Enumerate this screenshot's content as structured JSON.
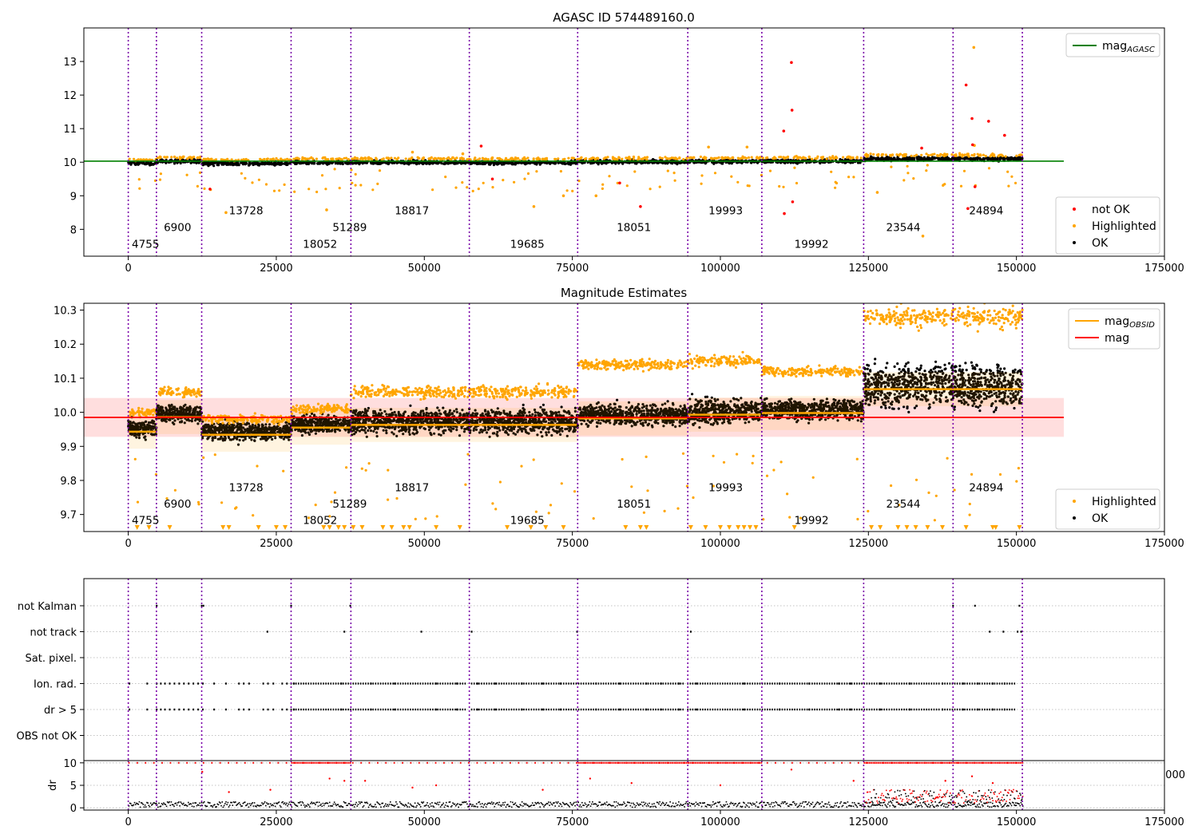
{
  "colors": {
    "ok": "#000000",
    "highlighted": "#ffa500",
    "not_ok": "#ff0000",
    "agasc_line": "#008000",
    "mag_line": "#ff0000",
    "mag_band": "#ffd6d6",
    "obs_boundary": "#7a00a8"
  },
  "chart_data": [
    {
      "type": "scatter",
      "title": "AGASC ID 574489160.0",
      "xlabel": "",
      "ylabel": "",
      "xlim": [
        -7500,
        175000
      ],
      "ylim": [
        7.2,
        14.0
      ],
      "xticks": [
        0,
        25000,
        50000,
        75000,
        100000,
        125000,
        150000,
        175000
      ],
      "xtick_labels": [
        "0",
        "25000",
        "50000",
        "75000",
        "100000",
        "125000",
        "150000",
        "175000"
      ],
      "yticks": [
        8,
        9,
        10,
        11,
        12,
        13
      ],
      "ytick_labels": [
        "8",
        "9",
        "10",
        "11",
        "12",
        "13"
      ],
      "mag_agasc": 10.03,
      "legend_position": "top-right / lower-right",
      "legend_top": [
        {
          "label": "mag",
          "sub": "AGASC",
          "color": "#008000",
          "kind": "line"
        }
      ],
      "legend_bottom": [
        {
          "label": "not OK",
          "color": "#ff0000",
          "kind": "dot"
        },
        {
          "label": "Highlighted",
          "color": "#ffa500",
          "kind": "dot"
        },
        {
          "label": "OK",
          "color": "#000000",
          "kind": "dot"
        }
      ],
      "obsid_boundaries": [
        0,
        4755,
        12400,
        27500,
        37600,
        57600,
        75900,
        94500,
        107000,
        124200,
        139300,
        151000
      ],
      "obsid_labels": [
        {
          "text": "4755",
          "x": 600,
          "y": 7.45
        },
        {
          "text": "6900",
          "x": 6000,
          "y": 7.95
        },
        {
          "text": "13728",
          "x": 17000,
          "y": 8.45
        },
        {
          "text": "18052",
          "x": 29500,
          "y": 7.45
        },
        {
          "text": "51289",
          "x": 34500,
          "y": 7.95
        },
        {
          "text": "18817",
          "x": 45000,
          "y": 8.45
        },
        {
          "text": "19685",
          "x": 64500,
          "y": 7.45
        },
        {
          "text": "18051",
          "x": 82500,
          "y": 7.95
        },
        {
          "text": "19993",
          "x": 98000,
          "y": 8.45
        },
        {
          "text": "19992",
          "x": 112500,
          "y": 7.45
        },
        {
          "text": "23544",
          "x": 128000,
          "y": 7.95
        },
        {
          "text": "24894",
          "x": 142000,
          "y": 8.45
        }
      ],
      "segments": [
        {
          "x0": 0,
          "x1": 4755,
          "ok_center": 9.94,
          "ok_spread": 0.05,
          "hl_upper": 10.0
        },
        {
          "x0": 4755,
          "x1": 12400,
          "ok_center": 10.0,
          "ok_spread": 0.05,
          "hl_upper": 10.06
        },
        {
          "x0": 12400,
          "x1": 27500,
          "ok_center": 9.93,
          "ok_spread": 0.05,
          "hl_upper": 9.98
        },
        {
          "x0": 27500,
          "x1": 37600,
          "ok_center": 9.96,
          "ok_spread": 0.05,
          "hl_upper": 10.01
        },
        {
          "x0": 37600,
          "x1": 57600,
          "ok_center": 9.97,
          "ok_spread": 0.07,
          "hl_upper": 10.06
        },
        {
          "x0": 57600,
          "x1": 75900,
          "ok_center": 9.96,
          "ok_spread": 0.07,
          "hl_upper": 10.06
        },
        {
          "x0": 75900,
          "x1": 94500,
          "ok_center": 9.98,
          "ok_spread": 0.06,
          "hl_upper": 10.14
        },
        {
          "x0": 94500,
          "x1": 107000,
          "ok_center": 9.99,
          "ok_spread": 0.07,
          "hl_upper": 10.15
        },
        {
          "x0": 107000,
          "x1": 124200,
          "ok_center": 10.0,
          "ok_spread": 0.06,
          "hl_upper": 10.12
        },
        {
          "x0": 124200,
          "x1": 139300,
          "ok_center": 10.07,
          "ok_spread": 0.12,
          "hl_upper": 10.28
        },
        {
          "x0": 139300,
          "x1": 151000,
          "ok_center": 10.07,
          "ok_spread": 0.12,
          "hl_upper": 10.28
        }
      ],
      "not_ok_points": [
        {
          "x": 13800,
          "y": 9.2
        },
        {
          "x": 59600,
          "y": 10.48
        },
        {
          "x": 61500,
          "y": 9.5
        },
        {
          "x": 83000,
          "y": 9.38
        },
        {
          "x": 86500,
          "y": 8.68
        },
        {
          "x": 110700,
          "y": 10.93
        },
        {
          "x": 110800,
          "y": 8.47
        },
        {
          "x": 112000,
          "y": 12.97
        },
        {
          "x": 112100,
          "y": 11.55
        },
        {
          "x": 112200,
          "y": 8.82
        },
        {
          "x": 134000,
          "y": 10.42
        },
        {
          "x": 141500,
          "y": 12.3
        },
        {
          "x": 141800,
          "y": 8.62
        },
        {
          "x": 142500,
          "y": 11.3
        },
        {
          "x": 142600,
          "y": 10.52
        },
        {
          "x": 143000,
          "y": 9.27
        },
        {
          "x": 145300,
          "y": 11.22
        },
        {
          "x": 148000,
          "y": 10.8
        }
      ],
      "highlighted_outliers": [
        {
          "x": 16500,
          "y": 8.5
        },
        {
          "x": 33500,
          "y": 8.58
        },
        {
          "x": 48000,
          "y": 10.3
        },
        {
          "x": 56500,
          "y": 10.25
        },
        {
          "x": 68500,
          "y": 8.68
        },
        {
          "x": 73500,
          "y": 9.0
        },
        {
          "x": 79000,
          "y": 9.0
        },
        {
          "x": 98000,
          "y": 10.45
        },
        {
          "x": 104500,
          "y": 10.45
        },
        {
          "x": 126500,
          "y": 9.1
        },
        {
          "x": 134200,
          "y": 7.8
        },
        {
          "x": 142800,
          "y": 13.42
        },
        {
          "x": 142900,
          "y": 10.5
        }
      ]
    },
    {
      "type": "scatter",
      "title": "Magnitude Estimates",
      "xlabel": "",
      "ylabel": "",
      "xlim": [
        -7500,
        175000
      ],
      "ylim": [
        9.65,
        10.32
      ],
      "xticks": [
        0,
        25000,
        50000,
        75000,
        100000,
        125000,
        150000,
        175000
      ],
      "xtick_labels": [
        "0",
        "25000",
        "50000",
        "75000",
        "100000",
        "125000",
        "150000",
        "175000"
      ],
      "yticks": [
        9.7,
        9.8,
        9.9,
        10.0,
        10.1,
        10.2,
        10.3
      ],
      "ytick_labels": [
        "9.7",
        "9.8",
        "9.9",
        "10.0",
        "10.1",
        "10.2",
        "10.3"
      ],
      "mag": 9.985,
      "mag_band": [
        9.928,
        10.042
      ],
      "legend_position": "top-right / lower-right",
      "legend_top": [
        {
          "label": "mag",
          "sub": "OBSID",
          "color": "#ffa500",
          "kind": "line"
        },
        {
          "label": "mag",
          "sub": "",
          "color": "#ff0000",
          "kind": "line"
        }
      ],
      "legend_bottom": [
        {
          "label": "Highlighted",
          "color": "#ffa500",
          "kind": "dot"
        },
        {
          "label": "OK",
          "color": "#000000",
          "kind": "dot"
        }
      ],
      "obsid_mags": [
        9.943,
        9.986,
        9.934,
        9.955,
        9.963,
        9.963,
        9.982,
        9.993,
        9.998,
        10.068,
        10.068
      ],
      "obsid_labels": [
        {
          "text": "4755",
          "x": 600,
          "y": 9.672
        },
        {
          "text": "6900",
          "x": 6000,
          "y": 9.72
        },
        {
          "text": "13728",
          "x": 17000,
          "y": 9.768
        },
        {
          "text": "18052",
          "x": 29500,
          "y": 9.672
        },
        {
          "text": "51289",
          "x": 34500,
          "y": 9.72
        },
        {
          "text": "18817",
          "x": 45000,
          "y": 9.768
        },
        {
          "text": "19685",
          "x": 64500,
          "y": 9.672
        },
        {
          "text": "18051",
          "x": 82500,
          "y": 9.72
        },
        {
          "text": "19993",
          "x": 98000,
          "y": 9.768
        },
        {
          "text": "19992",
          "x": 112500,
          "y": 9.672
        },
        {
          "text": "23544",
          "x": 128000,
          "y": 9.72
        },
        {
          "text": "24894",
          "x": 142000,
          "y": 9.768
        }
      ],
      "low_markers_x": [
        1500,
        3500,
        7000,
        16000,
        17000,
        22000,
        25000,
        26500,
        33000,
        34000,
        35500,
        36500,
        38000,
        39500,
        43000,
        44500,
        46500,
        47500,
        52000,
        56000,
        64000,
        68000,
        70500,
        73500,
        84000,
        86500,
        87500,
        95000,
        97500,
        100000,
        101500,
        103000,
        104000,
        105000,
        106000,
        112500,
        125500,
        127000,
        130000,
        131500,
        133000,
        135000,
        137500,
        141500,
        146000,
        146500,
        150500
      ]
    },
    {
      "type": "scatter",
      "title": "",
      "xlabel": "",
      "ylabel": "",
      "xlim": [
        -7500,
        175000
      ],
      "categories": [
        "not Kalman",
        "not track",
        "Sat. pixel.",
        "Ion. rad.",
        "dr > 5",
        "OBS not OK"
      ],
      "category_y": [
        6,
        5,
        4,
        3,
        2,
        1
      ],
      "ylim": [
        0.0,
        7.0
      ],
      "not_kalman_x": [
        4800,
        12400,
        12700,
        27500,
        37500,
        139300,
        143000,
        150500
      ],
      "not_track_x": [
        23500,
        36500,
        49500,
        58000,
        75800,
        95000,
        145500,
        147800,
        150200,
        150800
      ],
      "ion_rad_ranges": [
        [
          27500,
          57000
        ],
        [
          58000,
          94000
        ],
        [
          94500,
          137000
        ],
        [
          137500,
          150000
        ]
      ],
      "ion_rad_sparse_x": [
        200,
        3200,
        4800,
        5500,
        6200,
        7000,
        7800,
        8600,
        9400,
        10200,
        11000,
        11800,
        12600,
        14500,
        16500,
        18700,
        19500,
        20400,
        22800,
        23600,
        24500,
        26000,
        26800,
        28000,
        36000,
        41000,
        45000,
        52000,
        55500,
        59000,
        62000,
        66500,
        70000,
        73000,
        79000,
        83000,
        87500,
        90000,
        93000,
        96000,
        104000,
        110000,
        115000,
        120000,
        122000,
        127000,
        132000,
        137500,
        141000,
        143500,
        146000,
        148000
      ],
      "dr_gt5_ranges": [
        [
          27500,
          57000
        ],
        [
          58000,
          94000
        ],
        [
          94500,
          137000
        ],
        [
          137500,
          150000
        ]
      ],
      "dr_gt5_sparse_x": [
        200,
        3200,
        4800,
        5500,
        6200,
        7000,
        7800,
        8600,
        9400,
        10200,
        11000,
        11800,
        12600,
        14500,
        16500,
        18700,
        19500,
        20400,
        22800,
        23600,
        24500,
        26000,
        26800,
        28000,
        36000,
        41000,
        45000,
        52000,
        55500,
        59000,
        62000,
        66500,
        70000,
        73000,
        79000,
        83000,
        87500,
        90000,
        93000,
        96000,
        104000,
        110000,
        115000,
        120000,
        122000,
        127000,
        132000,
        137500,
        141000,
        143500,
        146000,
        148000
      ],
      "corner_tick_label": "000"
    },
    {
      "type": "scatter",
      "title": "",
      "xlabel": "",
      "ylabel": "dr",
      "xlim": [
        -7500,
        175000
      ],
      "ylim": [
        -0.5,
        10.5
      ],
      "yticks": [
        0,
        5,
        10
      ],
      "ytick_labels": [
        "0",
        "5",
        "10"
      ],
      "xticks": [
        0,
        25000,
        50000,
        75000,
        100000,
        125000,
        150000,
        175000
      ],
      "xtick_labels": [
        "0",
        "25000",
        "50000",
        "75000",
        "100000",
        "125000",
        "150000",
        "175000"
      ],
      "saturated_value": 10,
      "red_saturated_ranges": [
        [
          27500,
          37600
        ],
        [
          75900,
          94500
        ],
        [
          94500,
          107000
        ],
        [
          124200,
          151000
        ]
      ],
      "ok_band": {
        "low": 0.1,
        "high": 1.3
      },
      "high_band": {
        "x0": 124200,
        "x1": 151000,
        "low": 1.0,
        "high": 4.0
      },
      "scattered_red": [
        {
          "x": 12500,
          "y": 8.0
        },
        {
          "x": 17000,
          "y": 3.5
        },
        {
          "x": 24000,
          "y": 4.0
        },
        {
          "x": 34000,
          "y": 6.5
        },
        {
          "x": 36500,
          "y": 6.0
        },
        {
          "x": 40000,
          "y": 6.0
        },
        {
          "x": 48000,
          "y": 4.5
        },
        {
          "x": 52000,
          "y": 5.0
        },
        {
          "x": 70000,
          "y": 4.0
        },
        {
          "x": 78000,
          "y": 6.5
        },
        {
          "x": 85000,
          "y": 5.5
        },
        {
          "x": 100000,
          "y": 5.0
        },
        {
          "x": 112000,
          "y": 8.5
        },
        {
          "x": 122500,
          "y": 6.0
        },
        {
          "x": 138000,
          "y": 6.0
        },
        {
          "x": 142500,
          "y": 7.0
        },
        {
          "x": 146000,
          "y": 5.5
        }
      ]
    }
  ]
}
